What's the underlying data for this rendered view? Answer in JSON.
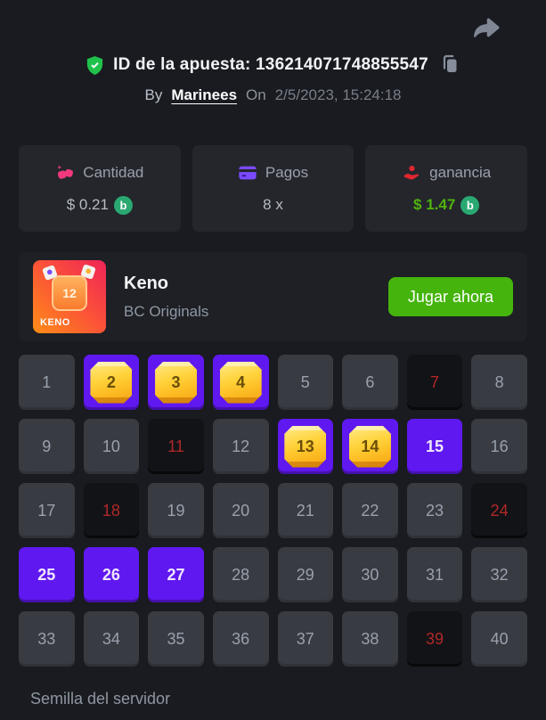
{
  "header": {
    "bet_id_label": "ID de la apuesta:",
    "bet_id_value": "136214071748855547",
    "by_label": "By",
    "username": "Marinees",
    "on_label": "On",
    "timestamp": "2/5/2023, 15:24:18"
  },
  "stats": [
    {
      "label": "Cantidad",
      "value": "$ 0.21",
      "icon": "gems-icon",
      "coin": "b"
    },
    {
      "label": "Pagos",
      "value": "8 x",
      "icon": "credit-card-icon"
    },
    {
      "label": "ganancia",
      "value": "$ 1.47",
      "icon": "hand-profit-icon",
      "coin": "b"
    }
  ],
  "game": {
    "title": "Keno",
    "provider": "BC Originals",
    "play_button": "Jugar ahora",
    "thumb_label": "KENO",
    "thumb_number": "12"
  },
  "grid": {
    "count": 40,
    "hit": [
      2,
      3,
      4,
      13,
      14
    ],
    "selected": [
      15,
      25,
      26,
      27
    ],
    "drawn": [
      7,
      11,
      18,
      24,
      39
    ]
  },
  "footer": {
    "server_seed_label": "Semilla del servidor"
  },
  "colors": {
    "background": "#191b20",
    "card": "#24262c",
    "tile_default": "#383b42",
    "tile_dark": "#121317",
    "accent_purple": "#6018f0",
    "gem_gold": "#ffd23a",
    "play_green": "#45b40d",
    "profit_green": "#4fb30d",
    "drawn_red": "#b12828",
    "coin_green": "#2aa871",
    "shield_green": "#1fc14a"
  }
}
